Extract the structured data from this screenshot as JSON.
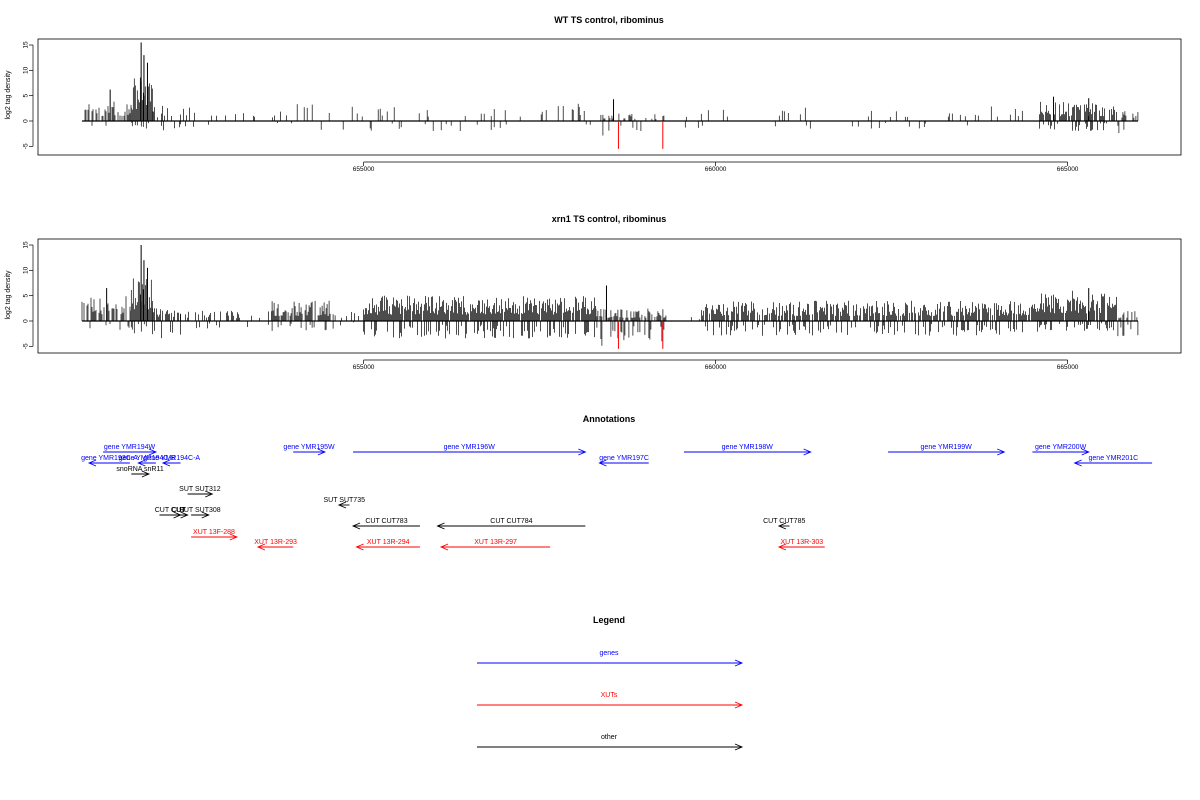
{
  "colors": {
    "gene": "#0000ff",
    "xut": "#ff0000",
    "other": "#000000",
    "negative_spike": "#ff0000"
  },
  "chart_data": [
    {
      "type": "bar",
      "title": "WT TS control, ribominus",
      "ylabel": "log2 tag density",
      "xlim": [
        650800,
        666200
      ],
      "ylim": [
        -5,
        16
      ],
      "yticks": [
        "15",
        "10",
        "5",
        "0",
        "-5"
      ],
      "yticks_values": [
        15,
        10,
        5,
        0,
        -5
      ],
      "xticks": [
        "655000",
        "660000",
        "665000"
      ],
      "xticks_values": [
        655000,
        660000,
        665000
      ],
      "grid": false,
      "peaks": [
        {
          "x": 651840,
          "value": 15.5
        },
        {
          "x": 651880,
          "value": 13.0
        },
        {
          "x": 651930,
          "value": 11.5
        },
        {
          "x": 651400,
          "value": 6.2
        },
        {
          "x": 658550,
          "value": 4.3
        },
        {
          "x": 664800,
          "value": 4.8
        },
        {
          "x": 665300,
          "value": 4.5
        }
      ],
      "density_segments": [
        {
          "from": 651000,
          "to": 651700,
          "max": 4,
          "neg_max": 2.5,
          "density": 0.5
        },
        {
          "from": 651700,
          "to": 652000,
          "max": 9,
          "neg_max": 1.5,
          "density": 1.0
        },
        {
          "from": 652000,
          "to": 652600,
          "max": 3,
          "neg_max": 2,
          "density": 0.35
        },
        {
          "from": 652600,
          "to": 654000,
          "max": 2,
          "neg_max": 0.8,
          "density": 0.08
        },
        {
          "from": 654000,
          "to": 658300,
          "max": 3.5,
          "neg_max": 2,
          "density": 0.12
        },
        {
          "from": 658300,
          "to": 659300,
          "max": 1.5,
          "neg_max": 3,
          "density": 0.3
        },
        {
          "from": 659300,
          "to": 664600,
          "max": 3,
          "neg_max": 1.5,
          "density": 0.09
        },
        {
          "from": 664600,
          "to": 665700,
          "max": 3.8,
          "neg_max": 2,
          "density": 0.75
        },
        {
          "from": 665700,
          "to": 666000,
          "max": 2,
          "neg_max": 2.5,
          "density": 0.35
        }
      ],
      "negative_spikes": [
        {
          "x": 658620,
          "value": -5.5
        },
        {
          "x": 659250,
          "value": -5.5
        }
      ]
    },
    {
      "type": "bar",
      "title": "xrn1 TS control, ribominus",
      "ylabel": "log2 tag density",
      "xlim": [
        650800,
        666200
      ],
      "ylim": [
        -5,
        16
      ],
      "yticks": [
        "15",
        "10",
        "5",
        "0",
        "-5"
      ],
      "yticks_values": [
        15,
        10,
        5,
        0,
        -5
      ],
      "xticks": [
        "655000",
        "660000",
        "665000"
      ],
      "xticks_values": [
        655000,
        660000,
        665000
      ],
      "grid": false,
      "peaks": [
        {
          "x": 651840,
          "value": 15.0
        },
        {
          "x": 651880,
          "value": 12.0
        },
        {
          "x": 651930,
          "value": 10.5
        },
        {
          "x": 651350,
          "value": 6.5
        },
        {
          "x": 658450,
          "value": 7.0
        },
        {
          "x": 665300,
          "value": 6.5
        }
      ],
      "density_segments": [
        {
          "from": 651000,
          "to": 651700,
          "max": 5,
          "neg_max": 2,
          "density": 0.6
        },
        {
          "from": 651700,
          "to": 652000,
          "max": 9,
          "neg_max": 2.5,
          "density": 1.0
        },
        {
          "from": 652000,
          "to": 652400,
          "max": 3,
          "neg_max": 3.5,
          "density": 0.6
        },
        {
          "from": 652400,
          "to": 653700,
          "max": 2,
          "neg_max": 1.5,
          "density": 0.3
        },
        {
          "from": 653700,
          "to": 654600,
          "max": 4,
          "neg_max": 2,
          "density": 0.7
        },
        {
          "from": 654600,
          "to": 655000,
          "max": 2,
          "neg_max": 1,
          "density": 0.2
        },
        {
          "from": 655000,
          "to": 658300,
          "max": 5,
          "neg_max": 3.5,
          "density": 0.95
        },
        {
          "from": 658300,
          "to": 659300,
          "max": 2.5,
          "neg_max": 5,
          "density": 0.7
        },
        {
          "from": 659300,
          "to": 659800,
          "max": 1,
          "neg_max": 0.5,
          "density": 0.05
        },
        {
          "from": 659800,
          "to": 664600,
          "max": 4,
          "neg_max": 3,
          "density": 0.8
        },
        {
          "from": 664600,
          "to": 665700,
          "max": 6,
          "neg_max": 2,
          "density": 0.95
        },
        {
          "from": 665700,
          "to": 666000,
          "max": 2,
          "neg_max": 3,
          "density": 0.5
        }
      ],
      "negative_spikes": [
        {
          "x": 658620,
          "value": -5.5
        },
        {
          "x": 659250,
          "value": -5.5
        }
      ]
    }
  ],
  "annotations": {
    "title": "Annotations",
    "items": [
      {
        "label": "gene YMR194W",
        "type": "gene",
        "x1": 651300,
        "x2": 652050,
        "row": 0
      },
      {
        "label": "gene YMR193C-A",
        "type": "gene",
        "x1": 651680,
        "x2": 651100,
        "row": 1
      },
      {
        "label": "gene YMR194C-B",
        "type": "gene",
        "x1": 652050,
        "x2": 651800,
        "row": 1
      },
      {
        "label": "gene YMR194C-A",
        "type": "gene",
        "x1": 652400,
        "x2": 652150,
        "row": 1
      },
      {
        "label": "gene YMR195W",
        "type": "gene",
        "x1": 654000,
        "x2": 654450,
        "row": 0
      },
      {
        "label": "gene YMR196W",
        "type": "gene",
        "x1": 654850,
        "x2": 658150,
        "row": 0
      },
      {
        "label": "gene YMR197C",
        "type": "gene",
        "x1": 659050,
        "x2": 658350,
        "row": 1
      },
      {
        "label": "gene YMR198W",
        "type": "gene",
        "x1": 659550,
        "x2": 661350,
        "row": 0
      },
      {
        "label": "gene YMR199W",
        "type": "gene",
        "x1": 662450,
        "x2": 664100,
        "row": 0
      },
      {
        "label": "gene YMR200W",
        "type": "gene",
        "x1": 664500,
        "x2": 665300,
        "row": 0
      },
      {
        "label": "gene YMR201C",
        "type": "gene",
        "x1": 666200,
        "x2": 665100,
        "row": 1
      },
      {
        "label": "snoRNA snR11",
        "type": "other",
        "x1": 651700,
        "x2": 651950,
        "row": 2
      },
      {
        "label": "SUT SUT312",
        "type": "other",
        "x1": 652500,
        "x2": 652850,
        "row": 3
      },
      {
        "label": "SUT SUT735",
        "type": "other",
        "x1": 654800,
        "x2": 654650,
        "row": 4
      },
      {
        "label": "CUT CUT",
        "type": "other",
        "x1": 652100,
        "x2": 652400,
        "row": 5
      },
      {
        "label": "CUT",
        "type": "other",
        "x1": 652250,
        "x2": 652500,
        "row": 5
      },
      {
        "label": "SUT SUT308",
        "type": "other",
        "x1": 652550,
        "x2": 652800,
        "row": 5
      },
      {
        "label": "CUT CUT783",
        "type": "other",
        "x1": 655800,
        "x2": 654850,
        "row": 6
      },
      {
        "label": "CUT CUT784",
        "type": "other",
        "x1": 658150,
        "x2": 656050,
        "row": 6
      },
      {
        "label": "CUT CUT785",
        "type": "other",
        "x1": 661050,
        "x2": 660900,
        "row": 6
      },
      {
        "label": "XUT 13F-288",
        "type": "xut",
        "x1": 652550,
        "x2": 653200,
        "row": 7
      },
      {
        "label": "XUT 13R-293",
        "type": "xut",
        "x1": 654000,
        "x2": 653500,
        "row": 8
      },
      {
        "label": "XUT 13R-294",
        "type": "xut",
        "x1": 655800,
        "x2": 654900,
        "row": 8
      },
      {
        "label": "XUT 13R-297",
        "type": "xut",
        "x1": 657650,
        "x2": 656100,
        "row": 8
      },
      {
        "label": "XUT 13R-303",
        "type": "xut",
        "x1": 661550,
        "x2": 660900,
        "row": 8
      }
    ]
  },
  "legend": {
    "title": "Legend",
    "items": [
      {
        "label": "genes",
        "type": "gene"
      },
      {
        "label": "XUTs",
        "type": "xut"
      },
      {
        "label": "other",
        "type": "other"
      }
    ]
  }
}
